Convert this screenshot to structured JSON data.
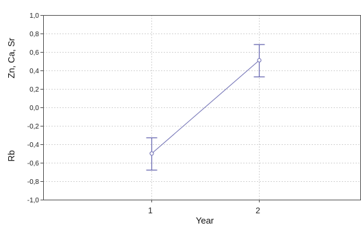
{
  "chart_data": {
    "type": "line",
    "xlabel": "Year",
    "ylabel_top": "Zn, Ca, Sr",
    "ylabel_bottom": "Rb",
    "ylim": [
      -1.0,
      1.0
    ],
    "yticks": [
      "1,0",
      "0,8",
      "0,6",
      "0,4",
      "0,2",
      "0,0",
      "-0,2",
      "-0,4",
      "-0,6",
      "-0,8",
      "-1,0"
    ],
    "ytick_values": [
      1.0,
      0.8,
      0.6,
      0.4,
      0.2,
      0.0,
      -0.2,
      -0.4,
      -0.6,
      -0.8,
      -1.0
    ],
    "x": [
      "1",
      "2"
    ],
    "grid": true,
    "series": [
      {
        "values": [
          -0.5,
          0.51
        ],
        "err_upper": [
          -0.33,
          0.68
        ],
        "err_lower": [
          -0.68,
          0.33
        ],
        "color": "#6f6fb4"
      }
    ],
    "colors": {
      "grid": "#d4d4d4",
      "axis": "#555555",
      "series": "#6f6fb4"
    }
  }
}
